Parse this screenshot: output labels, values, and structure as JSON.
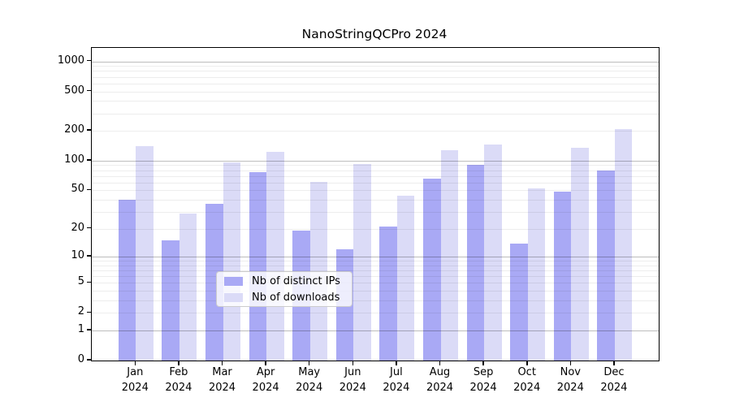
{
  "chart_data": {
    "type": "bar",
    "title": "NanoStringQCPro 2024",
    "categories": [
      "Jan 2024",
      "Feb 2024",
      "Mar 2024",
      "Apr 2024",
      "May 2024",
      "Jun 2024",
      "Jul 2024",
      "Aug 2024",
      "Sep 2024",
      "Oct 2024",
      "Nov 2024",
      "Dec 2024"
    ],
    "series": [
      {
        "name": "Nb of distinct IPs",
        "color": "#a9a9f5",
        "values": [
          40,
          15,
          36,
          76,
          19,
          12,
          21,
          66,
          91,
          14,
          48,
          79
        ]
      },
      {
        "name": "Nb of downloads",
        "color": "#dbdbf7",
        "values": [
          141,
          29,
          96,
          123,
          61,
          92,
          44,
          128,
          145,
          52,
          135,
          210
        ]
      }
    ],
    "yscale": "log1p",
    "yticks": [
      0,
      1,
      2,
      5,
      10,
      20,
      50,
      100,
      200,
      500,
      1000
    ],
    "ylim": [
      0,
      1360
    ],
    "xlabel": "",
    "ylabel": "",
    "grid": true,
    "legend_position": "bottom-center"
  }
}
